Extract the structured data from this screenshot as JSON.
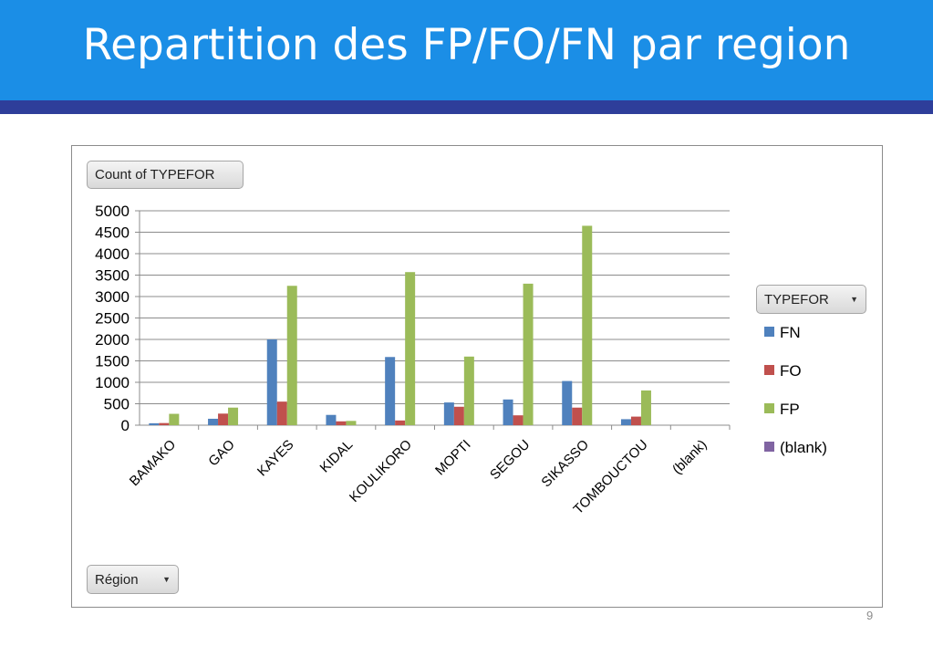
{
  "title": "Repartition des FP/FO/FN par region",
  "page_number": "9",
  "pivot": {
    "measure_label": "Count of TYPEFOR",
    "row_field_label": "Région",
    "legend_field_label": "TYPEFOR"
  },
  "chart_data": {
    "type": "bar",
    "categories": [
      "BAMAKO",
      "GAO",
      "KAYES",
      "KIDAL",
      "KOULIKORO",
      "MOPTI",
      "SEGOU",
      "SIKASSO",
      "TOMBOUCTOU",
      "(blank)"
    ],
    "series": [
      {
        "name": "FN",
        "color": "#4f81bd",
        "values": [
          45,
          150,
          2000,
          240,
          1590,
          530,
          600,
          1030,
          140,
          0
        ]
      },
      {
        "name": "FO",
        "color": "#c0504d",
        "values": [
          50,
          270,
          550,
          90,
          110,
          430,
          230,
          410,
          200,
          0
        ]
      },
      {
        "name": "FP",
        "color": "#9bbb59",
        "values": [
          265,
          410,
          3250,
          100,
          3570,
          1600,
          3300,
          4650,
          810,
          0
        ]
      },
      {
        "name": "(blank)",
        "color": "#8064a2",
        "values": [
          0,
          0,
          0,
          0,
          0,
          0,
          0,
          0,
          0,
          0
        ]
      }
    ],
    "ylim": [
      0,
      5000
    ],
    "yticks": [
      0,
      500,
      1000,
      1500,
      2000,
      2500,
      3000,
      3500,
      4000,
      4500,
      5000
    ],
    "grid": true,
    "legend_position": "right"
  }
}
